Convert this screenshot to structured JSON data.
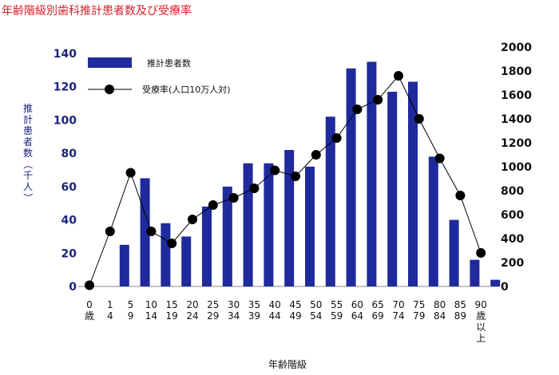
{
  "chart_data": {
    "type": "bar",
    "title": "年齢階級別歯科推計患者数及び受療率",
    "xlabel": "年齢階級",
    "ylabel": "推計患者数（千人）",
    "categories": [
      [
        "0",
        "歳"
      ],
      [
        "1",
        "4"
      ],
      [
        "5",
        "9"
      ],
      [
        "10",
        "14"
      ],
      [
        "15",
        "19"
      ],
      [
        "20",
        "24"
      ],
      [
        "25",
        "29"
      ],
      [
        "30",
        "34"
      ],
      [
        "35",
        "39"
      ],
      [
        "40",
        "44"
      ],
      [
        "45",
        "49"
      ],
      [
        "50",
        "54"
      ],
      [
        "55",
        "59"
      ],
      [
        "60",
        "64"
      ],
      [
        "65",
        "69"
      ],
      [
        "70",
        "74"
      ],
      [
        "75",
        "79"
      ],
      [
        "80",
        "84"
      ],
      [
        "85",
        "89"
      ],
      [
        "90",
        "歳",
        "以",
        "上"
      ]
    ],
    "y_left_ticks": [
      "0",
      "20",
      "40",
      "60",
      "80",
      "100",
      "120",
      "140"
    ],
    "y_right_ticks": [
      "0",
      "200",
      "400",
      "600",
      "800",
      "1000",
      "1200",
      "1400",
      "1600",
      "1800",
      "2000"
    ],
    "ylim_left": [
      0,
      140
    ],
    "ylim_right": [
      0,
      2000
    ],
    "series": [
      {
        "name": "推計患者数",
        "kind": "bar",
        "axis": "left",
        "color": "#1f2a9c",
        "values": [
          0,
          25,
          65,
          38,
          30,
          48,
          60,
          74,
          74,
          82,
          72,
          102,
          131,
          135,
          117,
          123,
          78,
          40,
          16,
          4
        ]
      },
      {
        "name": "受療率(人口10万人対)",
        "kind": "line",
        "axis": "right",
        "color": "#000000",
        "values": [
          10,
          460,
          950,
          460,
          360,
          560,
          680,
          740,
          820,
          970,
          920,
          1100,
          1240,
          1480,
          1560,
          1760,
          1400,
          1070,
          760,
          280
        ]
      }
    ]
  }
}
